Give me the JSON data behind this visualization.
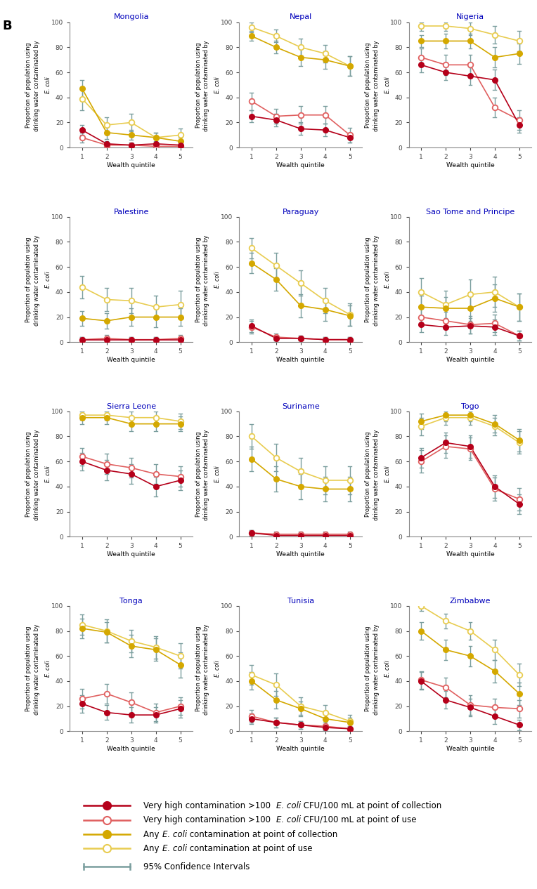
{
  "panel_label": "B",
  "titles": [
    "Mongolia",
    "Nepal",
    "Nigeria",
    "Palestine",
    "Paraguay",
    "Sao Tome and Principe",
    "Sierra Leone",
    "Suriname",
    "Togo",
    "Tonga",
    "Tunisia",
    "Zimbabwe"
  ],
  "x": [
    1,
    2,
    3,
    4,
    5
  ],
  "series": {
    "Mongolia": {
      "poc_high": [
        14,
        3,
        2,
        3,
        2
      ],
      "pou_high": [
        8,
        2,
        2,
        1,
        1
      ],
      "poc_any": [
        47,
        12,
        10,
        8,
        5
      ],
      "pou_any": [
        39,
        18,
        20,
        8,
        10
      ],
      "poc_high_ci": [
        [
          10,
          18
        ],
        [
          1,
          5
        ],
        [
          0,
          4
        ],
        [
          1,
          5
        ],
        [
          0,
          4
        ]
      ],
      "pou_high_ci": [
        [
          4,
          12
        ],
        [
          0,
          4
        ],
        [
          0,
          4
        ],
        [
          0,
          3
        ],
        [
          0,
          3
        ]
      ],
      "poc_any_ci": [
        [
          40,
          54
        ],
        [
          7,
          17
        ],
        [
          6,
          14
        ],
        [
          4,
          12
        ],
        [
          2,
          8
        ]
      ],
      "pou_any_ci": [
        [
          30,
          48
        ],
        [
          12,
          24
        ],
        [
          13,
          27
        ],
        [
          4,
          12
        ],
        [
          5,
          15
        ]
      ]
    },
    "Nepal": {
      "poc_high": [
        25,
        22,
        15,
        14,
        8
      ],
      "pou_high": [
        37,
        25,
        26,
        26,
        10
      ],
      "poc_any": [
        89,
        80,
        72,
        70,
        65
      ],
      "pou_any": [
        96,
        89,
        80,
        75,
        65
      ],
      "poc_high_ci": [
        [
          20,
          30
        ],
        [
          17,
          27
        ],
        [
          10,
          20
        ],
        [
          9,
          19
        ],
        [
          4,
          12
        ]
      ],
      "pou_high_ci": [
        [
          30,
          44
        ],
        [
          19,
          31
        ],
        [
          19,
          33
        ],
        [
          19,
          33
        ],
        [
          4,
          16
        ]
      ],
      "poc_any_ci": [
        [
          85,
          93
        ],
        [
          75,
          85
        ],
        [
          65,
          79
        ],
        [
          63,
          77
        ],
        [
          57,
          73
        ]
      ],
      "pou_any_ci": [
        [
          92,
          100
        ],
        [
          84,
          94
        ],
        [
          73,
          87
        ],
        [
          68,
          82
        ],
        [
          57,
          73
        ]
      ]
    },
    "Nigeria": {
      "poc_high": [
        66,
        60,
        57,
        54,
        18
      ],
      "pou_high": [
        72,
        66,
        66,
        32,
        22
      ],
      "poc_any": [
        85,
        85,
        85,
        72,
        75
      ],
      "pou_any": [
        97,
        97,
        95,
        90,
        85
      ],
      "poc_high_ci": [
        [
          60,
          72
        ],
        [
          54,
          66
        ],
        [
          50,
          64
        ],
        [
          46,
          62
        ],
        [
          12,
          24
        ]
      ],
      "pou_high_ci": [
        [
          65,
          79
        ],
        [
          58,
          74
        ],
        [
          58,
          74
        ],
        [
          24,
          40
        ],
        [
          14,
          30
        ]
      ],
      "poc_any_ci": [
        [
          80,
          90
        ],
        [
          79,
          91
        ],
        [
          79,
          91
        ],
        [
          64,
          80
        ],
        [
          67,
          83
        ]
      ],
      "pou_any_ci": [
        [
          93,
          100
        ],
        [
          93,
          100
        ],
        [
          90,
          100
        ],
        [
          83,
          97
        ],
        [
          77,
          93
        ]
      ]
    },
    "Palestine": {
      "poc_high": [
        2,
        2,
        2,
        2,
        2
      ],
      "pou_high": [
        2,
        3,
        2,
        2,
        3
      ],
      "poc_any": [
        19,
        17,
        20,
        20,
        20
      ],
      "pou_any": [
        44,
        34,
        33,
        28,
        30
      ],
      "poc_high_ci": [
        [
          0,
          4
        ],
        [
          0,
          4
        ],
        [
          0,
          4
        ],
        [
          0,
          4
        ],
        [
          0,
          4
        ]
      ],
      "pou_high_ci": [
        [
          0,
          4
        ],
        [
          0,
          6
        ],
        [
          0,
          4
        ],
        [
          0,
          4
        ],
        [
          0,
          6
        ]
      ],
      "poc_any_ci": [
        [
          13,
          25
        ],
        [
          11,
          23
        ],
        [
          13,
          27
        ],
        [
          12,
          28
        ],
        [
          13,
          27
        ]
      ],
      "pou_any_ci": [
        [
          35,
          53
        ],
        [
          25,
          43
        ],
        [
          23,
          43
        ],
        [
          19,
          37
        ],
        [
          19,
          41
        ]
      ]
    },
    "Paraguay": {
      "poc_high": [
        13,
        3,
        3,
        2,
        2
      ],
      "pou_high": [
        12,
        4,
        3,
        2,
        2
      ],
      "poc_any": [
        63,
        50,
        29,
        26,
        21
      ],
      "pou_any": [
        75,
        61,
        47,
        33,
        22
      ],
      "poc_high_ci": [
        [
          8,
          18
        ],
        [
          1,
          5
        ],
        [
          1,
          5
        ],
        [
          0,
          4
        ],
        [
          0,
          4
        ]
      ],
      "pou_high_ci": [
        [
          7,
          17
        ],
        [
          1,
          7
        ],
        [
          1,
          5
        ],
        [
          0,
          4
        ],
        [
          0,
          4
        ]
      ],
      "poc_any_ci": [
        [
          55,
          71
        ],
        [
          41,
          59
        ],
        [
          20,
          38
        ],
        [
          17,
          35
        ],
        [
          13,
          29
        ]
      ],
      "pou_any_ci": [
        [
          67,
          83
        ],
        [
          51,
          71
        ],
        [
          37,
          57
        ],
        [
          23,
          43
        ],
        [
          13,
          31
        ]
      ]
    },
    "Sao Tome and Principe": {
      "poc_high": [
        14,
        12,
        13,
        12,
        5
      ],
      "pou_high": [
        20,
        17,
        14,
        15,
        5
      ],
      "poc_any": [
        28,
        27,
        27,
        35,
        28
      ],
      "pou_any": [
        40,
        30,
        38,
        40,
        28
      ],
      "poc_high_ci": [
        [
          8,
          20
        ],
        [
          6,
          18
        ],
        [
          7,
          19
        ],
        [
          6,
          18
        ],
        [
          1,
          9
        ]
      ],
      "pou_high_ci": [
        [
          13,
          27
        ],
        [
          10,
          24
        ],
        [
          7,
          21
        ],
        [
          8,
          22
        ],
        [
          1,
          9
        ]
      ],
      "poc_any_ci": [
        [
          19,
          37
        ],
        [
          18,
          36
        ],
        [
          17,
          37
        ],
        [
          24,
          46
        ],
        [
          17,
          39
        ]
      ],
      "pou_any_ci": [
        [
          29,
          51
        ],
        [
          19,
          41
        ],
        [
          26,
          50
        ],
        [
          28,
          52
        ],
        [
          17,
          39
        ]
      ]
    },
    "Sierra Leone": {
      "poc_high": [
        60,
        53,
        50,
        40,
        45
      ],
      "pou_high": [
        64,
        58,
        55,
        50,
        48
      ],
      "poc_any": [
        95,
        95,
        90,
        90,
        90
      ],
      "pou_any": [
        97,
        97,
        95,
        95,
        92
      ],
      "poc_high_ci": [
        [
          53,
          67
        ],
        [
          45,
          61
        ],
        [
          42,
          58
        ],
        [
          32,
          48
        ],
        [
          37,
          53
        ]
      ],
      "pou_high_ci": [
        [
          57,
          71
        ],
        [
          50,
          66
        ],
        [
          47,
          63
        ],
        [
          42,
          58
        ],
        [
          40,
          56
        ]
      ],
      "poc_any_ci": [
        [
          90,
          100
        ],
        [
          90,
          100
        ],
        [
          84,
          96
        ],
        [
          84,
          96
        ],
        [
          84,
          96
        ]
      ],
      "pou_any_ci": [
        [
          93,
          100
        ],
        [
          93,
          100
        ],
        [
          90,
          100
        ],
        [
          90,
          100
        ],
        [
          86,
          98
        ]
      ]
    },
    "Suriname": {
      "poc_high": [
        3,
        1,
        1,
        1,
        1
      ],
      "pou_high": [
        3,
        2,
        2,
        2,
        2
      ],
      "poc_any": [
        62,
        46,
        40,
        38,
        38
      ],
      "pou_any": [
        80,
        63,
        52,
        45,
        45
      ],
      "poc_high_ci": [
        [
          1,
          5
        ],
        [
          0,
          3
        ],
        [
          0,
          3
        ],
        [
          0,
          3
        ],
        [
          0,
          3
        ]
      ],
      "pou_high_ci": [
        [
          1,
          5
        ],
        [
          0,
          4
        ],
        [
          0,
          4
        ],
        [
          0,
          4
        ],
        [
          0,
          4
        ]
      ],
      "poc_any_ci": [
        [
          52,
          72
        ],
        [
          36,
          56
        ],
        [
          30,
          50
        ],
        [
          28,
          48
        ],
        [
          28,
          48
        ]
      ],
      "pou_any_ci": [
        [
          70,
          90
        ],
        [
          52,
          74
        ],
        [
          41,
          63
        ],
        [
          34,
          56
        ],
        [
          34,
          56
        ]
      ]
    },
    "Togo": {
      "poc_high": [
        63,
        75,
        72,
        40,
        26
      ],
      "pou_high": [
        60,
        72,
        70,
        38,
        30
      ],
      "poc_any": [
        92,
        97,
        97,
        90,
        77
      ],
      "pou_any": [
        88,
        95,
        95,
        88,
        75
      ],
      "poc_high_ci": [
        [
          55,
          71
        ],
        [
          67,
          83
        ],
        [
          63,
          81
        ],
        [
          31,
          49
        ],
        [
          18,
          34
        ]
      ],
      "pou_high_ci": [
        [
          51,
          69
        ],
        [
          63,
          81
        ],
        [
          61,
          79
        ],
        [
          29,
          47
        ],
        [
          21,
          39
        ]
      ],
      "poc_any_ci": [
        [
          86,
          98
        ],
        [
          92,
          100
        ],
        [
          92,
          100
        ],
        [
          83,
          97
        ],
        [
          68,
          86
        ]
      ],
      "pou_any_ci": [
        [
          81,
          95
        ],
        [
          89,
          100
        ],
        [
          89,
          100
        ],
        [
          81,
          95
        ],
        [
          66,
          84
        ]
      ]
    },
    "Tonga": {
      "poc_high": [
        22,
        15,
        13,
        13,
        18
      ],
      "pou_high": [
        26,
        30,
        23,
        15,
        20
      ],
      "poc_any": [
        82,
        79,
        68,
        65,
        53
      ],
      "pou_any": [
        85,
        80,
        72,
        67,
        60
      ],
      "poc_high_ci": [
        [
          15,
          29
        ],
        [
          9,
          21
        ],
        [
          7,
          19
        ],
        [
          7,
          19
        ],
        [
          11,
          25
        ]
      ],
      "pou_high_ci": [
        [
          18,
          34
        ],
        [
          22,
          38
        ],
        [
          15,
          31
        ],
        [
          8,
          22
        ],
        [
          13,
          27
        ]
      ],
      "poc_any_ci": [
        [
          74,
          90
        ],
        [
          71,
          87
        ],
        [
          59,
          77
        ],
        [
          56,
          74
        ],
        [
          43,
          63
        ]
      ],
      "pou_any_ci": [
        [
          77,
          93
        ],
        [
          71,
          89
        ],
        [
          63,
          81
        ],
        [
          58,
          76
        ],
        [
          50,
          70
        ]
      ]
    },
    "Tunisia": {
      "poc_high": [
        10,
        7,
        5,
        3,
        2
      ],
      "pou_high": [
        12,
        7,
        5,
        4,
        2
      ],
      "poc_any": [
        40,
        25,
        18,
        10,
        7
      ],
      "pou_any": [
        45,
        37,
        20,
        15,
        8
      ],
      "poc_high_ci": [
        [
          6,
          14
        ],
        [
          3,
          11
        ],
        [
          2,
          8
        ],
        [
          1,
          5
        ],
        [
          0,
          4
        ]
      ],
      "pou_high_ci": [
        [
          7,
          17
        ],
        [
          3,
          11
        ],
        [
          2,
          8
        ],
        [
          1,
          7
        ],
        [
          0,
          4
        ]
      ],
      "poc_any_ci": [
        [
          33,
          47
        ],
        [
          18,
          32
        ],
        [
          12,
          24
        ],
        [
          5,
          15
        ],
        [
          3,
          11
        ]
      ],
      "pou_any_ci": [
        [
          37,
          53
        ],
        [
          28,
          46
        ],
        [
          13,
          27
        ],
        [
          9,
          21
        ],
        [
          3,
          13
        ]
      ]
    },
    "Zimbabwe": {
      "poc_high": [
        40,
        25,
        19,
        12,
        5
      ],
      "pou_high": [
        41,
        35,
        21,
        19,
        18
      ],
      "poc_any": [
        80,
        65,
        60,
        48,
        30
      ],
      "pou_any": [
        100,
        88,
        80,
        65,
        45
      ],
      "poc_high_ci": [
        [
          33,
          47
        ],
        [
          18,
          32
        ],
        [
          12,
          26
        ],
        [
          6,
          18
        ],
        [
          1,
          9
        ]
      ],
      "pou_high_ci": [
        [
          34,
          48
        ],
        [
          27,
          43
        ],
        [
          13,
          29
        ],
        [
          12,
          26
        ],
        [
          11,
          25
        ]
      ],
      "poc_any_ci": [
        [
          73,
          87
        ],
        [
          57,
          73
        ],
        [
          52,
          68
        ],
        [
          39,
          57
        ],
        [
          21,
          39
        ]
      ],
      "pou_any_ci": [
        [
          96,
          100
        ],
        [
          82,
          94
        ],
        [
          73,
          87
        ],
        [
          57,
          73
        ],
        [
          36,
          54
        ]
      ]
    }
  },
  "colors": {
    "poc_high": "#B5001A",
    "pou_high": "#E06060",
    "poc_any": "#D4A800",
    "pou_any": "#E8CC50",
    "ci": "#7A9E9E"
  },
  "xlabel": "Wealth quintile",
  "ylim": [
    0,
    100
  ],
  "yticks": [
    0,
    20,
    40,
    60,
    80,
    100
  ],
  "xticks": [
    1,
    2,
    3,
    4,
    5
  ],
  "title_color": "#0000BB",
  "ylabel_line1": "Proportion of population using",
  "ylabel_line2": "drinking water contaminated by",
  "ylabel_ecoli": "E. coli",
  "legend_items": [
    {
      "color": "#B5001A",
      "filled": true,
      "text_parts": [
        [
          "Very high contamination >100  ",
          false
        ],
        [
          "E. coli",
          true
        ],
        [
          " CFU/100 mL at point of collection",
          false
        ]
      ]
    },
    {
      "color": "#E06060",
      "filled": false,
      "text_parts": [
        [
          "Very high contamination >100  ",
          false
        ],
        [
          "E. coli",
          true
        ],
        [
          " CFU/100 mL at point of use",
          false
        ]
      ]
    },
    {
      "color": "#D4A800",
      "filled": true,
      "text_parts": [
        [
          "Any ",
          false
        ],
        [
          "E. coli",
          true
        ],
        [
          " contamination at point of collection",
          false
        ]
      ]
    },
    {
      "color": "#E8CC50",
      "filled": false,
      "text_parts": [
        [
          "Any ",
          false
        ],
        [
          "E. coli",
          true
        ],
        [
          " contamination at point of use",
          false
        ]
      ]
    }
  ],
  "ci_legend_label": "95% Confidence Intervals",
  "ci_color": "#7A9E9E"
}
